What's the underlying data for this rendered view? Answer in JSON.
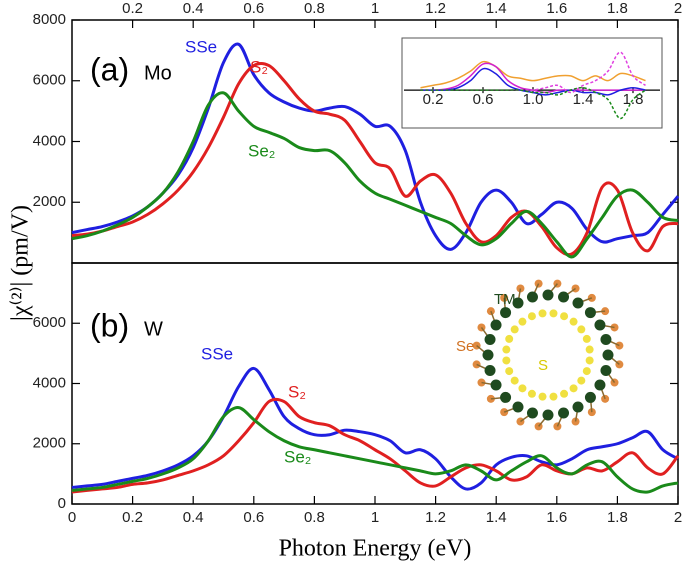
{
  "chart_data": [
    {
      "type": "line",
      "panel_label": "(a)",
      "material": "Mo",
      "ylabel": "|χ⁽²⁾| (pm/V)",
      "x": [
        0,
        0.05,
        0.1,
        0.15,
        0.2,
        0.25,
        0.3,
        0.35,
        0.4,
        0.45,
        0.5,
        0.55,
        0.6,
        0.65,
        0.7,
        0.75,
        0.8,
        0.85,
        0.9,
        0.95,
        1,
        1.05,
        1.1,
        1.15,
        1.2,
        1.25,
        1.3,
        1.35,
        1.4,
        1.45,
        1.5,
        1.55,
        1.6,
        1.65,
        1.7,
        1.75,
        1.8,
        1.85,
        1.9,
        1.95,
        2
      ],
      "xlim": [
        0,
        2
      ],
      "xticks": [
        0.2,
        0.4,
        0.6,
        0.8,
        1,
        1.2,
        1.4,
        1.6,
        1.8,
        2
      ],
      "ylim": [
        0,
        8000
      ],
      "yticks": [
        2000,
        4000,
        6000,
        8000
      ],
      "series": [
        {
          "name": "SSe",
          "color": "#1f1fe0",
          "values": [
            1000,
            1100,
            1200,
            1350,
            1550,
            1850,
            2300,
            2900,
            3800,
            5100,
            6600,
            7200,
            6200,
            5600,
            5300,
            5100,
            5000,
            5100,
            5150,
            4900,
            4500,
            4500,
            3700,
            2000,
            900,
            450,
            1000,
            2000,
            2400,
            2000,
            1300,
            1600,
            2000,
            1800,
            1100,
            700,
            800,
            900,
            1000,
            1600,
            2200
          ]
        },
        {
          "name": "S₂",
          "color": "#e02020",
          "values": [
            900,
            950,
            1050,
            1200,
            1350,
            1600,
            1950,
            2400,
            3000,
            3800,
            4800,
            5900,
            6500,
            6500,
            6000,
            5400,
            5000,
            4900,
            4700,
            4000,
            3300,
            3100,
            2200,
            2700,
            2900,
            2300,
            1300,
            700,
            900,
            1500,
            1700,
            1200,
            500,
            300,
            1000,
            2500,
            2400,
            1000,
            400,
            1200,
            1300
          ]
        },
        {
          "name": "Se₂",
          "color": "#1a8a1a",
          "values": [
            800,
            900,
            1050,
            1250,
            1500,
            1850,
            2300,
            3000,
            4000,
            5200,
            5600,
            5000,
            4500,
            4300,
            4100,
            3800,
            3700,
            3700,
            3300,
            2700,
            2300,
            2100,
            1900,
            1700,
            1500,
            1300,
            900,
            600,
            800,
            1300,
            1700,
            1300,
            700,
            200,
            800,
            1500,
            2200,
            2400,
            2000,
            1500,
            1400
          ]
        }
      ]
    },
    {
      "type": "line",
      "panel_label": "(b)",
      "material": "W",
      "xlabel": "Photon Energy (eV)",
      "inset_labels": [
        "TM",
        "Se",
        "S"
      ],
      "x": [
        0,
        0.05,
        0.1,
        0.15,
        0.2,
        0.25,
        0.3,
        0.35,
        0.4,
        0.45,
        0.5,
        0.55,
        0.6,
        0.65,
        0.7,
        0.75,
        0.8,
        0.85,
        0.9,
        0.95,
        1,
        1.05,
        1.1,
        1.15,
        1.2,
        1.25,
        1.3,
        1.35,
        1.4,
        1.45,
        1.5,
        1.55,
        1.6,
        1.65,
        1.7,
        1.75,
        1.8,
        1.85,
        1.9,
        1.95,
        2
      ],
      "xlim": [
        0,
        2
      ],
      "xticks": [
        0,
        0.2,
        0.4,
        0.6,
        0.8,
        1,
        1.2,
        1.4,
        1.6,
        1.8,
        2
      ],
      "ylim": [
        0,
        8000
      ],
      "yticks": [
        0,
        2000,
        4000,
        6000
      ],
      "series": [
        {
          "name": "SSe",
          "color": "#1f1fe0",
          "values": [
            550,
            600,
            650,
            750,
            850,
            950,
            1100,
            1300,
            1600,
            2100,
            2900,
            3900,
            4500,
            3800,
            2900,
            2500,
            2300,
            2300,
            2450,
            2400,
            2300,
            2100,
            1700,
            1800,
            1500,
            900,
            500,
            700,
            1300,
            1550,
            1600,
            1400,
            1300,
            1500,
            1800,
            1900,
            2000,
            2200,
            2400,
            1800,
            1500
          ]
        },
        {
          "name": "S₂",
          "color": "#e02020",
          "values": [
            400,
            450,
            500,
            550,
            650,
            700,
            800,
            950,
            1100,
            1300,
            1600,
            2100,
            2700,
            3400,
            3400,
            2900,
            2700,
            2600,
            2300,
            2100,
            1800,
            1500,
            1100,
            700,
            600,
            900,
            1200,
            1300,
            1100,
            800,
            900,
            1300,
            1100,
            1000,
            1200,
            1100,
            1400,
            1700,
            1200,
            1000,
            1600
          ]
        },
        {
          "name": "Se₂",
          "color": "#1a8a1a",
          "values": [
            450,
            500,
            550,
            650,
            750,
            850,
            1000,
            1200,
            1500,
            2100,
            2900,
            3200,
            2800,
            2400,
            2100,
            1900,
            1800,
            1700,
            1600,
            1500,
            1400,
            1300,
            1200,
            1100,
            1000,
            1100,
            1300,
            1100,
            800,
            1100,
            1400,
            1600,
            1200,
            1000,
            1300,
            1400,
            900,
            500,
            400,
            600,
            700
          ]
        }
      ]
    },
    {
      "type": "line",
      "x": [
        0.1,
        0.2,
        0.3,
        0.4,
        0.5,
        0.6,
        0.7,
        0.8,
        0.9,
        1,
        1.1,
        1.2,
        1.3,
        1.4,
        1.5,
        1.6,
        1.7,
        1.8,
        1.9
      ],
      "xlim": [
        0,
        2
      ],
      "xticks": [
        0.2,
        0.6,
        {
          "value": 1,
          "label": "1.0"
        },
        1.4,
        1.8
      ],
      "ylim": [
        -0.8,
        1.1
      ],
      "series": [
        {
          "color": "#f0a030",
          "dash": false,
          "values": [
            0.05,
            0.1,
            0.15,
            0.25,
            0.4,
            0.6,
            0.5,
            0.3,
            0.25,
            0.2,
            0.25,
            0.3,
            0.3,
            0.2,
            0.3,
            0.2,
            0.35,
            0.3,
            0.2
          ]
        },
        {
          "color": "#d020d0",
          "dash": false,
          "values": [
            0,
            0,
            0.02,
            0.1,
            0.3,
            0.55,
            0.5,
            0.2,
            0.05,
            0,
            -0.05,
            0,
            0,
            0,
            0,
            0,
            0,
            0,
            0
          ]
        },
        {
          "color": "#1f1fe0",
          "dash": false,
          "values": [
            0,
            0,
            0,
            0.05,
            0.2,
            0.45,
            0.35,
            0.1,
            0,
            -0.05,
            -0.1,
            -0.05,
            0,
            -0.05,
            -0.05,
            -0.1,
            0,
            0.05,
            0
          ]
        },
        {
          "color": "#e040e0",
          "dash": true,
          "values": [
            0,
            0,
            0,
            0,
            0,
            0,
            0,
            0,
            0,
            0,
            0.05,
            0.1,
            -0.05,
            0.1,
            0.2,
            0.4,
            0.8,
            0.3,
            0.1
          ]
        },
        {
          "color": "#1a8a1a",
          "dash": true,
          "values": [
            0,
            0,
            0,
            0,
            0,
            0,
            0,
            0,
            0,
            -0.05,
            -0.05,
            -0.1,
            0,
            0.05,
            -0.05,
            -0.2,
            -0.6,
            -0.2,
            0
          ]
        }
      ]
    }
  ]
}
